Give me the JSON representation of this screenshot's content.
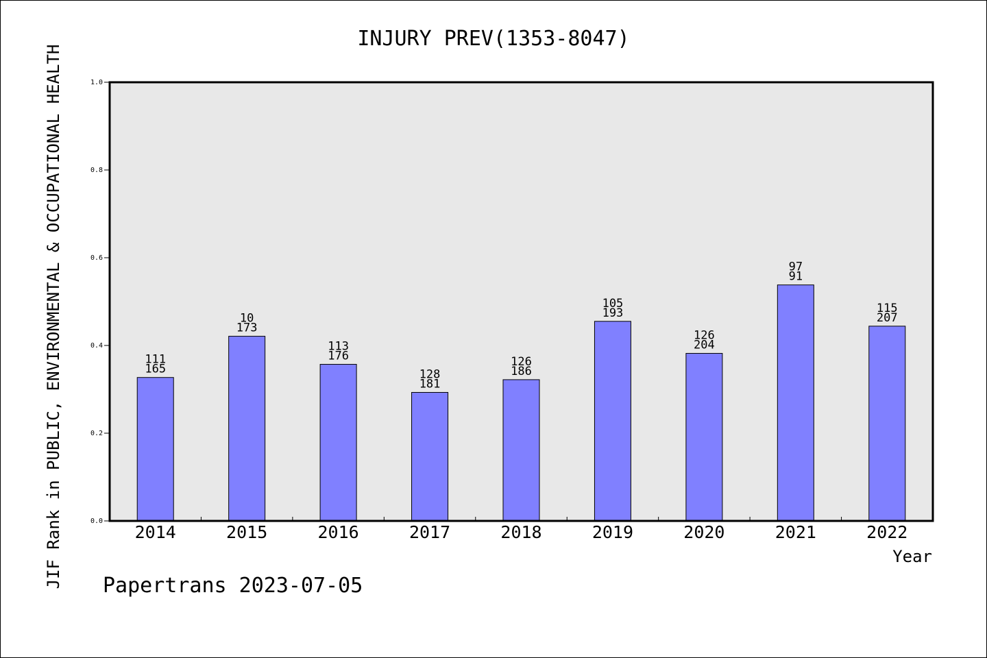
{
  "chart_data": {
    "type": "bar",
    "title": "INJURY PREV(1353-8047)",
    "xlabel": "Year",
    "ylabel": "JIF Rank in PUBLIC, ENVIRONMENTAL & OCCUPATIONAL HEALTH",
    "categories": [
      "2014",
      "2015",
      "2016",
      "2017",
      "2018",
      "2019",
      "2020",
      "2021",
      "2022"
    ],
    "values": [
      0.327,
      0.421,
      0.357,
      0.293,
      0.322,
      0.455,
      0.382,
      0.538,
      0.444
    ],
    "labels_top": [
      "111",
      "10",
      "113",
      "128",
      "126",
      "105",
      "126",
      "97",
      "115"
    ],
    "labels_bottom": [
      "165",
      "173",
      "176",
      "181",
      "186",
      "193",
      "204",
      "91",
      "207"
    ],
    "ylim": [
      0,
      1.0
    ],
    "yticks": [
      "0.0",
      "0.2",
      "0.4",
      "0.6",
      "0.8",
      "1.0"
    ],
    "bar_color": "#8080ff",
    "plot_background": "#e8e8e8",
    "grid": false
  },
  "footer": "Papertrans 2023-07-05"
}
